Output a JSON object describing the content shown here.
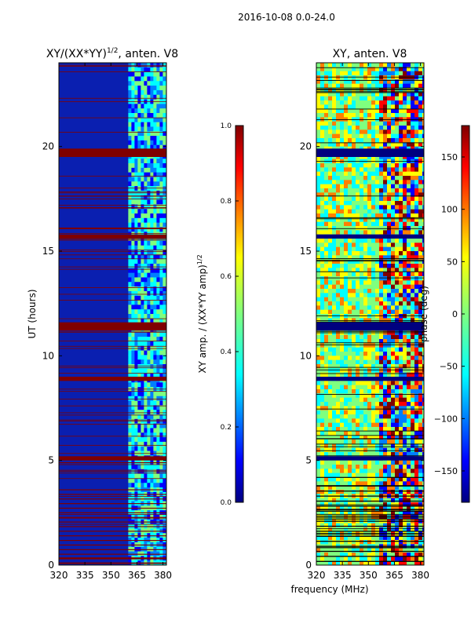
{
  "figure": {
    "suptitle": "2016-10-08 0.0-24.0",
    "xlabel": "frequency (MHz)",
    "ylabel": "UT (hours)"
  },
  "chart_data": [
    {
      "type": "heatmap",
      "title": "XY/(XX*YY)^1/2, anten. V8",
      "title_main": "XY/(XX*YY)",
      "title_exp": "1/2",
      "title_tail": ", anten. V8",
      "xlim": [
        320,
        382
      ],
      "ylim": [
        0,
        24
      ],
      "xticks": [
        320,
        335,
        350,
        365,
        380
      ],
      "yticks": [
        0,
        5,
        10,
        15,
        20
      ],
      "colorbar": {
        "label": "XY amp. / (XX*YY amp)^1/2",
        "label_main": "XY amp. / (XX*YY amp)",
        "label_exp": "1/2",
        "range": [
          0.0,
          1.0
        ],
        "ticks": [
          "0.0",
          "0.2",
          "0.4",
          "0.6",
          "0.8",
          "1.0"
        ]
      },
      "description_bands": {
        "full_flag_hours": [
          [
            19.5,
            19.9
          ],
          [
            15.6,
            15.8
          ],
          [
            11.2,
            11.6
          ],
          [
            8.8,
            9.0
          ],
          [
            5.0,
            5.2
          ]
        ],
        "active_freq_range": [
          360,
          382
        ]
      }
    },
    {
      "type": "heatmap",
      "title": "XY, anten. V8",
      "xlim": [
        320,
        382
      ],
      "ylim": [
        0,
        24
      ],
      "xticks": [
        320,
        335,
        350,
        365,
        380
      ],
      "yticks": [
        0,
        5,
        10,
        15,
        20
      ],
      "colorbar": {
        "label": "phase (deg)",
        "range": [
          -180,
          180
        ],
        "ticks": [
          "150",
          "100",
          "50",
          "0",
          "−50",
          "−100",
          "−150"
        ]
      },
      "description_bands": {
        "full_flag_hours": [
          [
            19.5,
            19.9
          ],
          [
            15.6,
            15.8
          ],
          [
            11.2,
            11.6
          ],
          [
            8.8,
            9.0
          ],
          [
            5.0,
            5.2
          ]
        ]
      }
    }
  ],
  "colors": {
    "cmap": [
      "#00007f",
      "#0000ff",
      "#007fff",
      "#00ffff",
      "#7fff7f",
      "#ffff00",
      "#ff7f00",
      "#ff0000",
      "#7f0000"
    ],
    "flag": "#7f0000",
    "flag_phase": "#00007f"
  }
}
